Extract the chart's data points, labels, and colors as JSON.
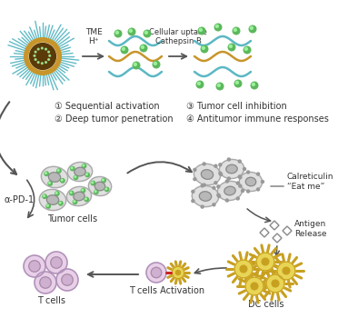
{
  "bg_color": "#ffffff",
  "teal_color": "#5bb8c4",
  "gold_color": "#c8952a",
  "green_dot_color": "#5cb85c",
  "text_color": "#333333",
  "arrow_color": "#555555",
  "dc_yellow": "#e8d455",
  "dc_outer": "#c8a020",
  "label_tme": "TME\nH⁺",
  "label_cellular": "Cellular uptake\nCathepsin B",
  "label_seq": "① Sequential activation",
  "label_deep": "② Deep tumor penetration",
  "label_tumor_inh": "③ Tumor cell inhibition",
  "label_antitumor": "④ Antitumor immune responses",
  "label_tumor_cells": "Tumor cells",
  "label_calreticulin": "Calreticulin\n“Eat me”",
  "label_antigen": "Antigen\nRelease",
  "label_apd1": "α-PD-1",
  "label_tcells": "T cells",
  "label_tcells_act": "T cells Activation",
  "label_dc": "DC cells"
}
